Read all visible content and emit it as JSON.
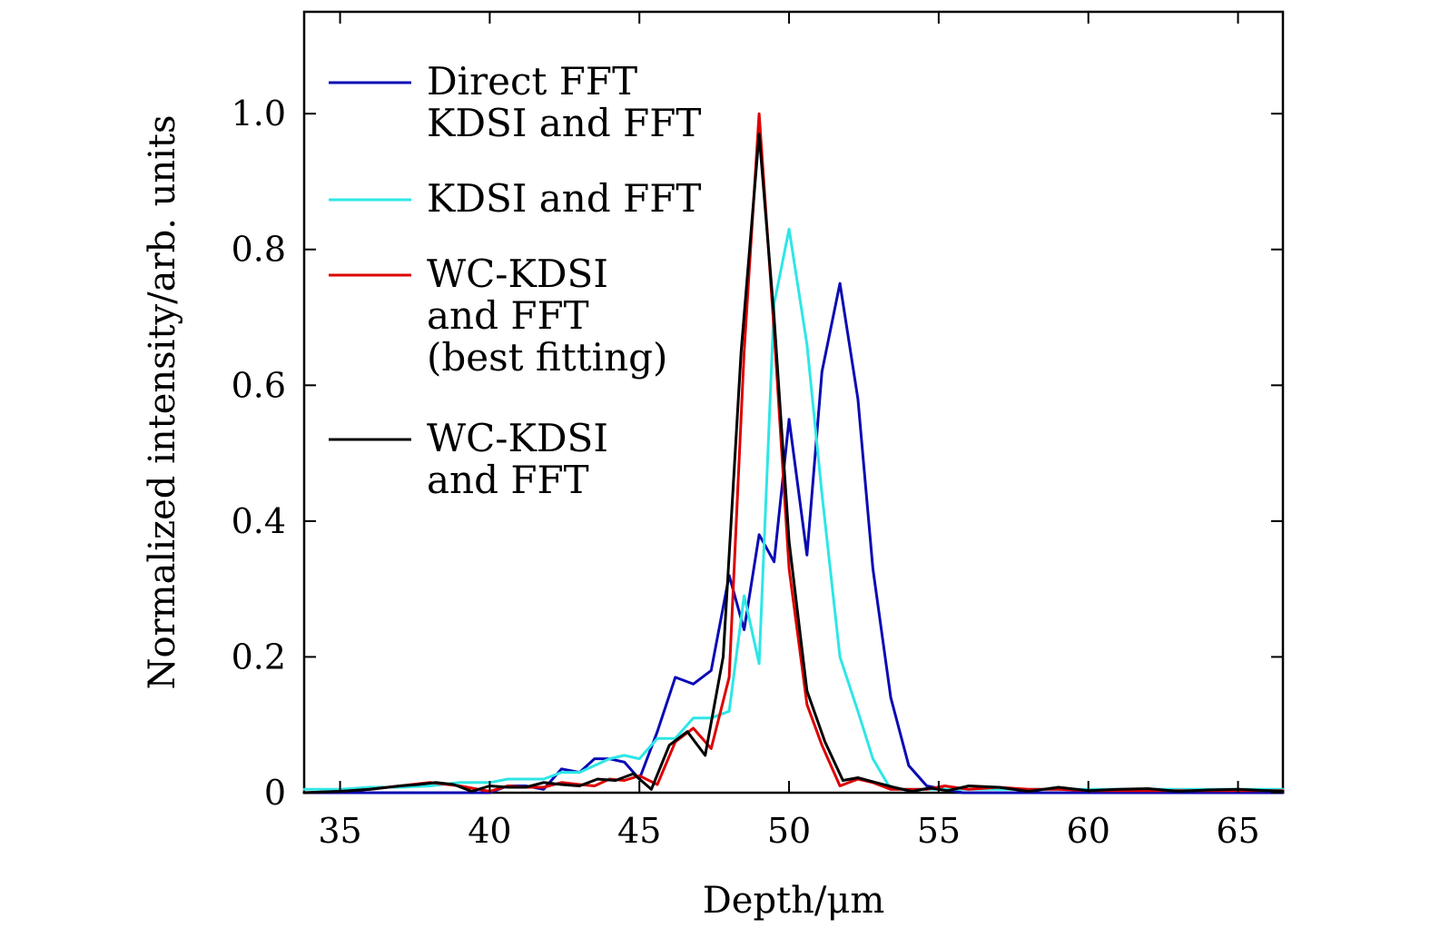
{
  "chart_data": {
    "type": "line",
    "title": "",
    "xlabel": "Depth/μm",
    "ylabel": "Normalized intensity/arb. units",
    "xlim": [
      33.8,
      66.5
    ],
    "ylim": [
      0,
      1.15
    ],
    "xticks": [
      35,
      40,
      45,
      50,
      55,
      60,
      65
    ],
    "xtick_labels": [
      "35",
      "40",
      "45",
      "50",
      "55",
      "60",
      "65"
    ],
    "yticks": [
      0,
      0.2,
      0.4,
      0.6,
      0.8,
      1.0
    ],
    "ytick_labels": [
      "0",
      "0.2",
      "0.4",
      "0.6",
      "0.8",
      "1.0"
    ],
    "grid": false,
    "legend_position": "top-left",
    "legend": [
      {
        "lines": [
          "Direct FFT",
          "KDSI and FFT"
        ],
        "color": "#0a0ab4"
      },
      {
        "lines": [
          "KDSI and FFT"
        ],
        "color": "#2ee6e6"
      },
      {
        "lines": [
          "WC-KDSI",
          "and FFT",
          "(best fitting)"
        ],
        "color": "#dd0000"
      },
      {
        "lines": [
          "WC-KDSI",
          "and FFT"
        ],
        "color": "#000000"
      }
    ],
    "series": [
      {
        "name": "Direct FFT KDSI and FFT",
        "color": "#0a0ab4",
        "x": [
          33.8,
          35,
          36,
          37,
          38,
          39,
          40,
          40.6,
          41.2,
          41.8,
          42.4,
          43,
          43.5,
          44,
          44.5,
          45,
          45.6,
          46.2,
          46.8,
          47.4,
          48,
          48.5,
          49,
          49.5,
          50,
          50.6,
          51.1,
          51.7,
          52.3,
          52.8,
          53.4,
          54,
          54.6,
          55.2,
          55.8,
          56.4,
          57,
          58,
          59,
          60,
          61,
          62,
          63,
          64,
          65,
          66.5
        ],
        "y": [
          0,
          0,
          0,
          0,
          0,
          0,
          0,
          0.01,
          0.01,
          0.005,
          0.035,
          0.03,
          0.05,
          0.05,
          0.045,
          0.02,
          0.09,
          0.17,
          0.16,
          0.18,
          0.32,
          0.24,
          0.38,
          0.34,
          0.55,
          0.35,
          0.62,
          0.75,
          0.58,
          0.33,
          0.14,
          0.04,
          0.01,
          0.005,
          0,
          0,
          0,
          0,
          0,
          0,
          0,
          0,
          0,
          0,
          0,
          0
        ]
      },
      {
        "name": "KDSI and FFT",
        "color": "#2ee6e6",
        "x": [
          33.8,
          35,
          36,
          37,
          38,
          39,
          40,
          40.6,
          41.2,
          41.8,
          42.4,
          43,
          43.5,
          44,
          44.5,
          45,
          45.6,
          46.2,
          46.8,
          47.4,
          48,
          48.5,
          49,
          49.5,
          50,
          50.6,
          51.1,
          51.7,
          52.3,
          52.8,
          53.4,
          54,
          54.6,
          55.2,
          56,
          57,
          58,
          59,
          60,
          61,
          62,
          63,
          64,
          65,
          66.5
        ],
        "y": [
          0.005,
          0.005,
          0.008,
          0.008,
          0.01,
          0.015,
          0.015,
          0.02,
          0.02,
          0.02,
          0.03,
          0.03,
          0.04,
          0.05,
          0.055,
          0.05,
          0.08,
          0.08,
          0.11,
          0.11,
          0.12,
          0.29,
          0.19,
          0.72,
          0.83,
          0.66,
          0.44,
          0.2,
          0.12,
          0.05,
          0.005,
          0.005,
          0.005,
          0.005,
          0.005,
          0.005,
          0.005,
          0.005,
          0.005,
          0.005,
          0.005,
          0.005,
          0.005,
          0.005,
          0.005
        ]
      },
      {
        "name": "WC-KDSI and FFT (best fitting)",
        "color": "#dd0000",
        "x": [
          33.8,
          35,
          36,
          37,
          38,
          39,
          40,
          40.6,
          41.2,
          41.8,
          42.4,
          43,
          43.5,
          44,
          44.5,
          45,
          45.6,
          46.2,
          46.8,
          47.4,
          48,
          48.5,
          49,
          49.5,
          50,
          50.6,
          51.1,
          51.7,
          52.3,
          52.8,
          53.4,
          54,
          54.6,
          55.2,
          56,
          57,
          58,
          59,
          60,
          61,
          62,
          63,
          64,
          65,
          66.5
        ],
        "y": [
          0,
          0.002,
          0.005,
          0.01,
          0.015,
          0.01,
          0.002,
          0.01,
          0.008,
          0.008,
          0.015,
          0.012,
          0.01,
          0.02,
          0.018,
          0.025,
          0.012,
          0.075,
          0.095,
          0.065,
          0.17,
          0.65,
          1.0,
          0.68,
          0.33,
          0.13,
          0.07,
          0.01,
          0.02,
          0.015,
          0.005,
          0.005,
          0.005,
          0.01,
          0.005,
          0.008,
          0.005,
          0.005,
          0.003,
          0.003,
          0.003,
          0.003,
          0.003,
          0.003,
          0.003
        ]
      },
      {
        "name": "WC-KDSI and FFT",
        "color": "#000000",
        "x": [
          33.8,
          35,
          36,
          37,
          37.6,
          38.2,
          38.8,
          39.4,
          40,
          40.6,
          41.2,
          41.8,
          42.4,
          43,
          43.6,
          44.2,
          44.8,
          45.4,
          46,
          46.6,
          47.2,
          47.8,
          48.4,
          49,
          49.5,
          50,
          50.6,
          51.2,
          51.8,
          52.3,
          52.9,
          53.5,
          54.1,
          54.7,
          55.3,
          56,
          57,
          58,
          59,
          60,
          61,
          62,
          63,
          64,
          65,
          66.5
        ],
        "y": [
          0,
          0.002,
          0.005,
          0.01,
          0.012,
          0.015,
          0.012,
          0.002,
          0.01,
          0.008,
          0.008,
          0.015,
          0.012,
          0.01,
          0.02,
          0.018,
          0.028,
          0.005,
          0.07,
          0.09,
          0.055,
          0.2,
          0.65,
          0.97,
          0.7,
          0.37,
          0.15,
          0.075,
          0.018,
          0.022,
          0.015,
          0.008,
          0.002,
          0.007,
          0.003,
          0.01,
          0.008,
          0.002,
          0.008,
          0.003,
          0.005,
          0.006,
          0.002,
          0.004,
          0.005,
          0.002
        ]
      }
    ]
  }
}
